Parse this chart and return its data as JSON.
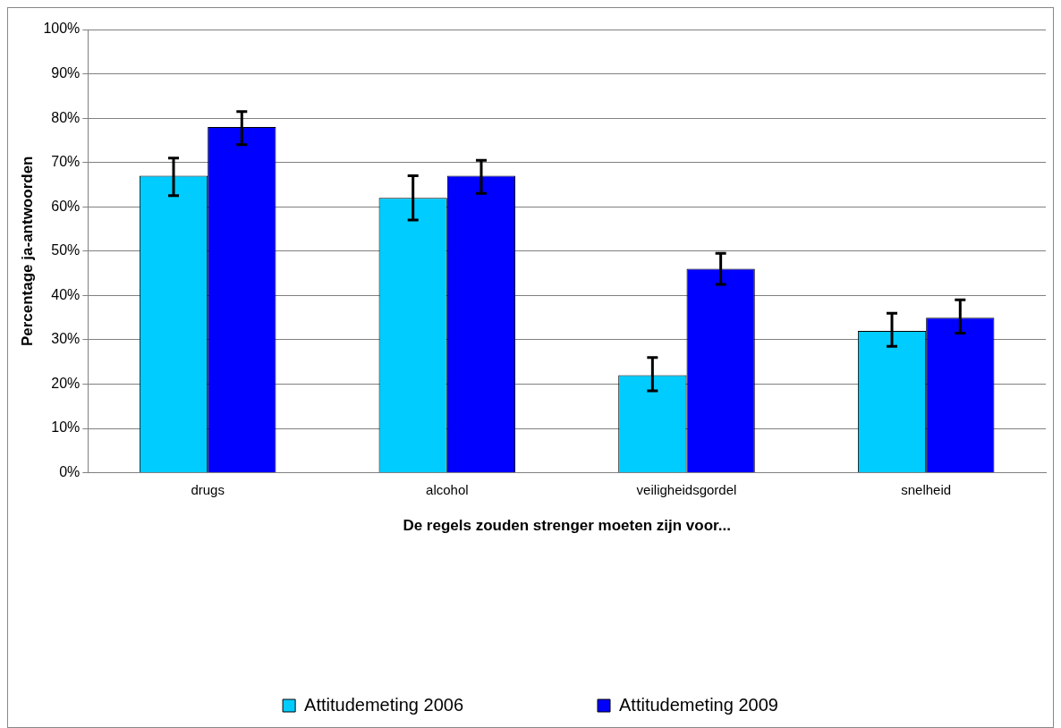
{
  "chart_data": {
    "type": "bar",
    "categories": [
      "drugs",
      "alcohol",
      "veiligheidsgordel",
      "snelheid"
    ],
    "xlabel": "De regels zouden strenger moeten zijn voor...",
    "ylabel": "Percentage ja-antwoorden",
    "series": [
      {
        "name": "Attitudemeting 2006",
        "color": "#00ccff",
        "values": [
          67,
          62,
          22,
          32
        ],
        "errors": [
          [
            62.5,
            71
          ],
          [
            57,
            67
          ],
          [
            18.5,
            26
          ],
          [
            28.5,
            36
          ]
        ]
      },
      {
        "name": "Attitudemeting 2009",
        "color": "#0000ff",
        "values": [
          78,
          67,
          46,
          35
        ],
        "errors": [
          [
            74,
            81.5
          ],
          [
            63,
            70.5
          ],
          [
            42.5,
            49.5
          ],
          [
            31.5,
            39
          ]
        ]
      }
    ],
    "ylim": [
      0,
      100
    ],
    "yticks": [
      {
        "value": 0,
        "label": "0%"
      },
      {
        "value": 10,
        "label": "10%"
      },
      {
        "value": 20,
        "label": "20%"
      },
      {
        "value": 30,
        "label": "30%"
      },
      {
        "value": 40,
        "label": "40%"
      },
      {
        "value": 50,
        "label": "50%"
      },
      {
        "value": 60,
        "label": "60%"
      },
      {
        "value": 70,
        "label": "70%"
      },
      {
        "value": 80,
        "label": "80%"
      },
      {
        "value": 90,
        "label": "90%"
      },
      {
        "value": 100,
        "label": "100%"
      }
    ],
    "grid": "y",
    "legend": "bottom"
  }
}
